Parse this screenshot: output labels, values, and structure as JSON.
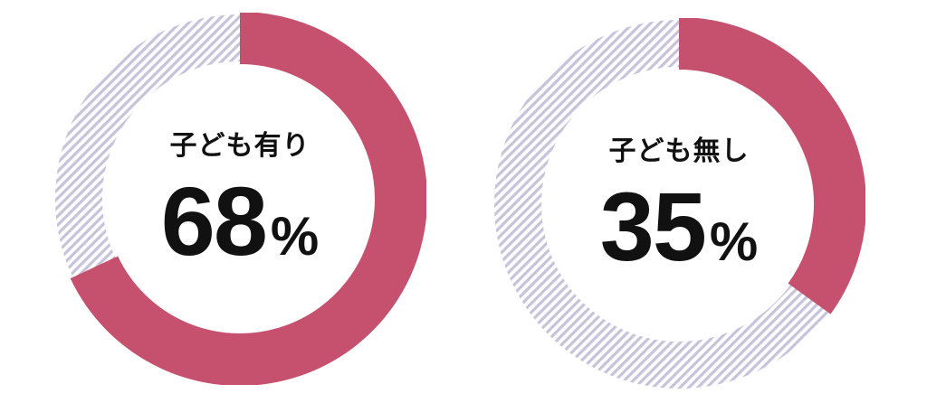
{
  "page": {
    "background": "#ffffff"
  },
  "chart_data": {
    "type": "donut",
    "layout": "two donut charts side by side, no axes, no legend",
    "direction": "clockwise",
    "start_angle_deg": 0,
    "legend": "none",
    "colors": {
      "value_arc": "#c6516e",
      "remainder_hatch_stripe": "#c7c3db",
      "remainder_hatch_bg": "#ffffff",
      "text": "#111111"
    },
    "charts": [
      {
        "label": "子ども有り",
        "value": 68,
        "suffix": "%",
        "remainder": 32
      },
      {
        "label": "子ども無し",
        "value": 35,
        "suffix": "%",
        "remainder": 65
      }
    ]
  }
}
